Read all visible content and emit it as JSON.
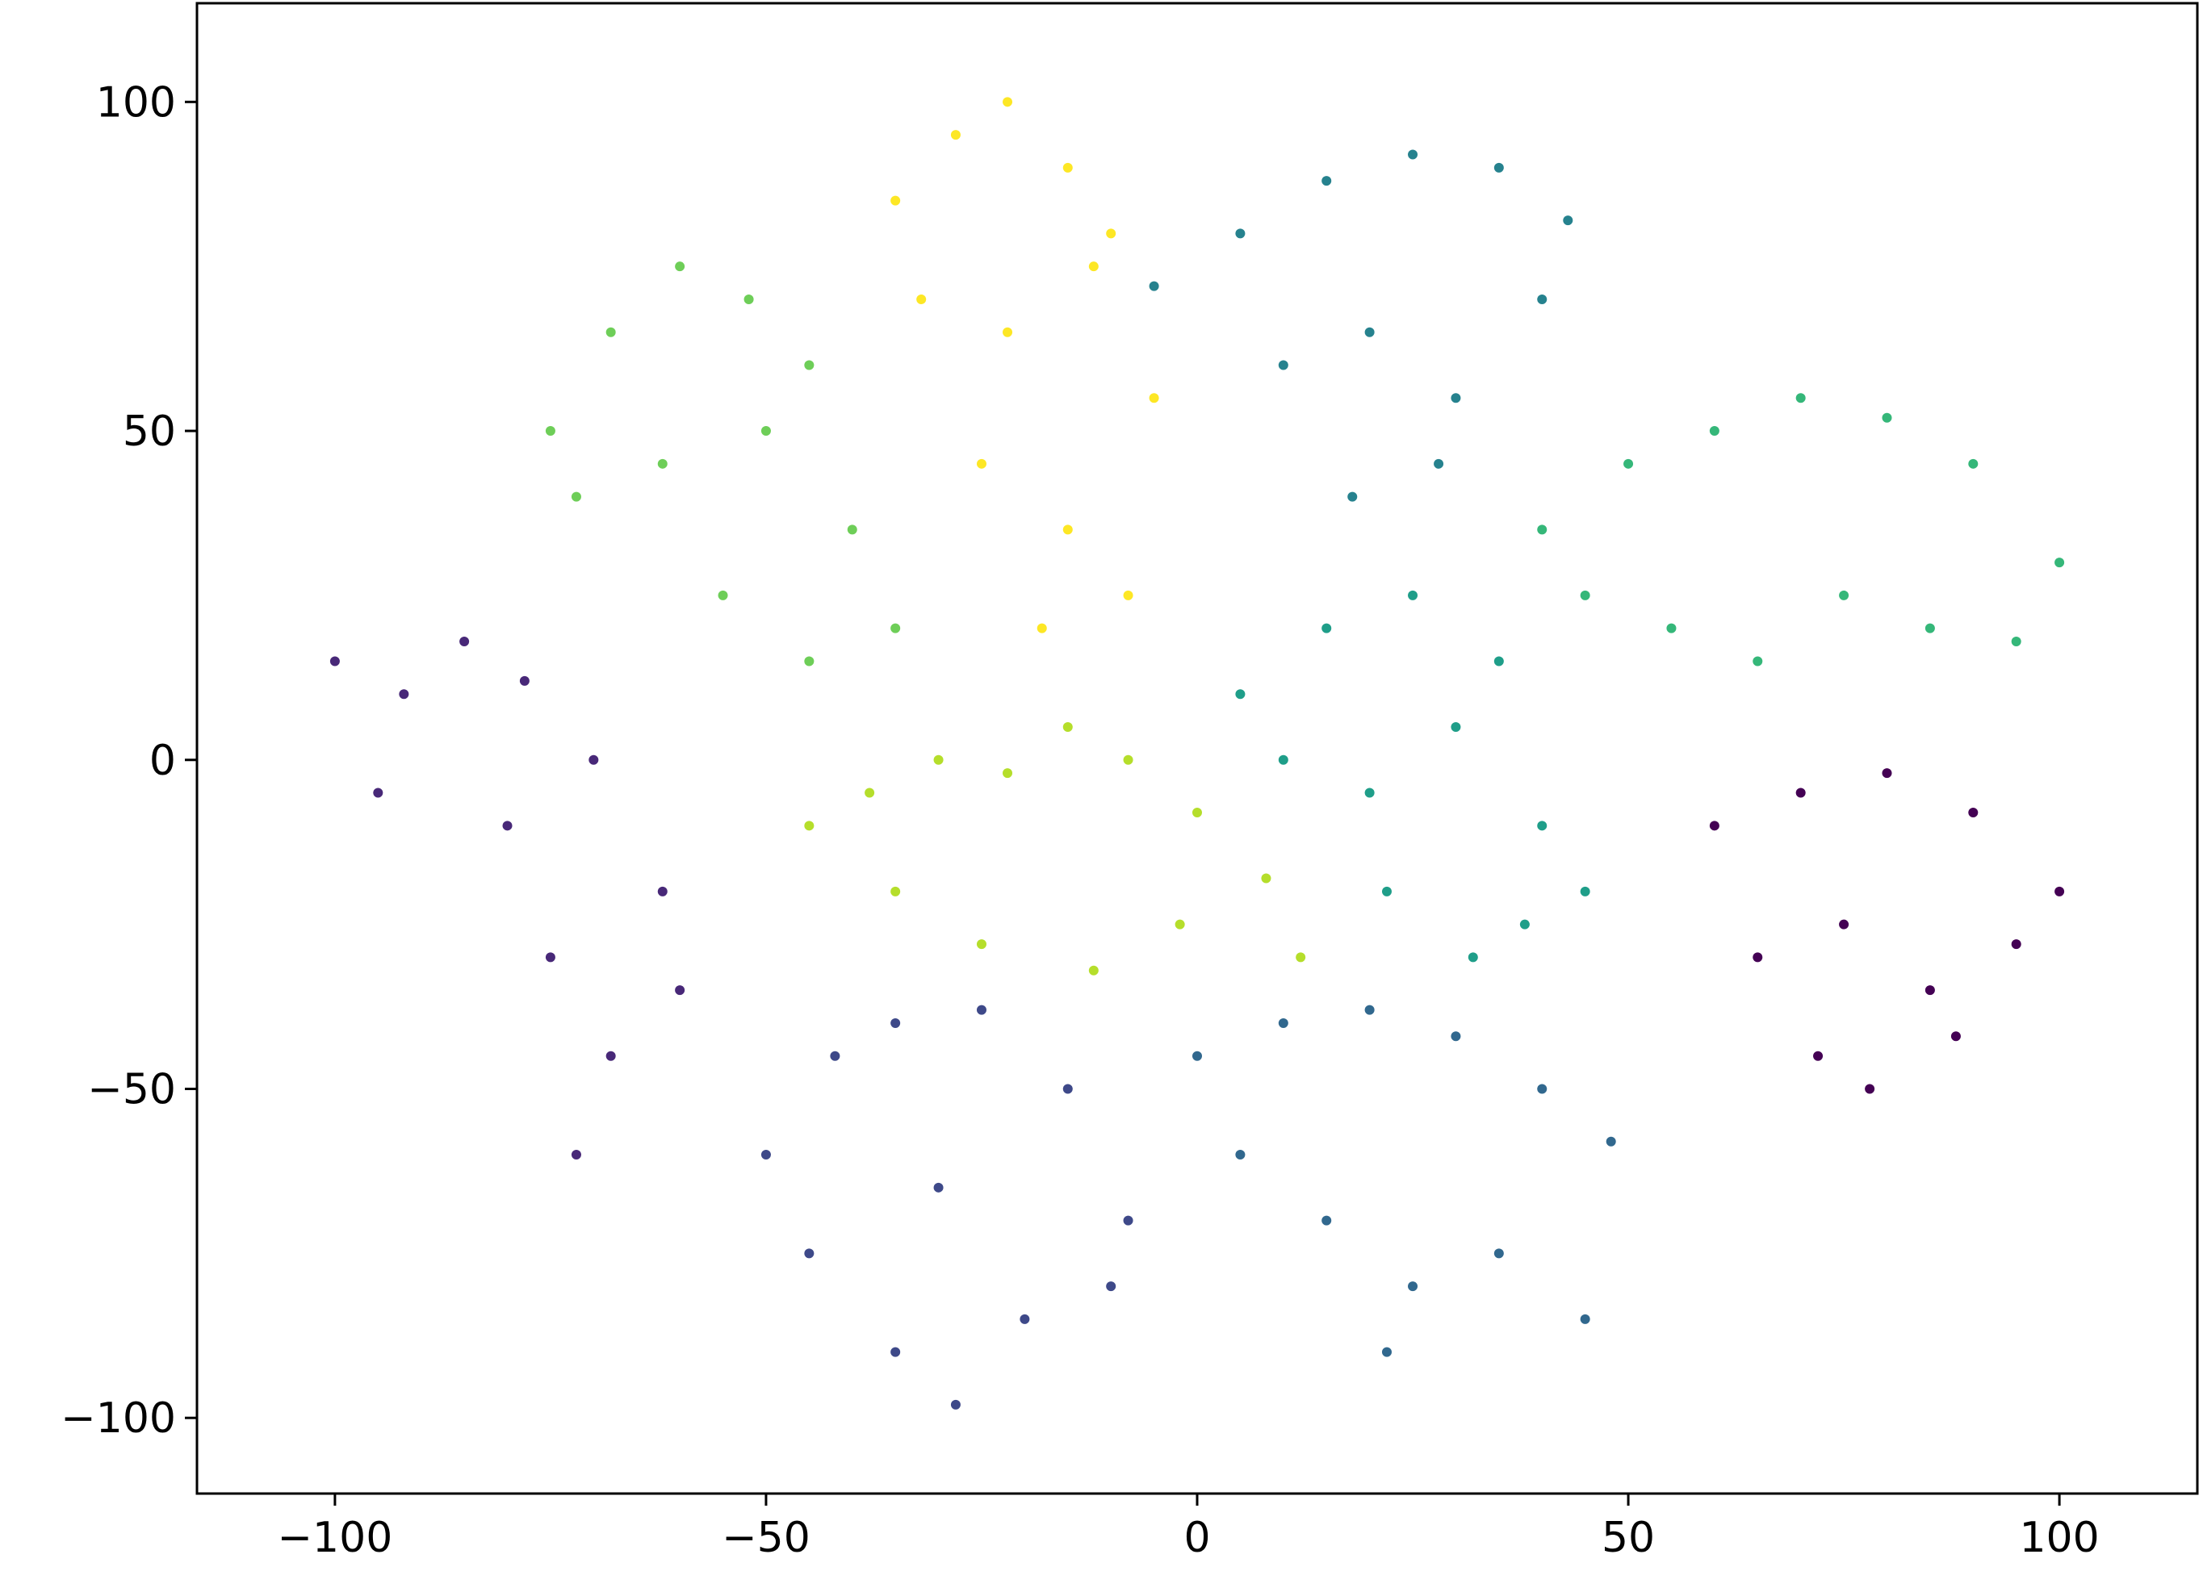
{
  "chart_data": {
    "type": "scatter",
    "xlim": [
      -116,
      116
    ],
    "ylim": [
      -111.5,
      115
    ],
    "xticks": [
      {
        "value": -100,
        "label": "−100"
      },
      {
        "value": -50,
        "label": "−50"
      },
      0,
      50,
      100
    ],
    "yticks": [
      {
        "value": -100,
        "label": "−100"
      },
      {
        "value": -50,
        "label": "−50"
      },
      0,
      50,
      100
    ],
    "grid": false,
    "series": [
      {
        "color": "#440154",
        "x": [
          60,
          70,
          80,
          90,
          100,
          65,
          75,
          85,
          95,
          78,
          72,
          88
        ],
        "y": [
          -10,
          -5,
          -2,
          -8,
          -20,
          -30,
          -25,
          -35,
          -28,
          -50,
          -45,
          -42
        ]
      },
      {
        "color": "#482878",
        "x": [
          -100,
          -92,
          -85,
          -78,
          -95,
          -80,
          -70,
          -62,
          -75,
          -68,
          -72,
          -60
        ],
        "y": [
          15,
          10,
          18,
          12,
          -5,
          -10,
          0,
          -20,
          -30,
          -45,
          -60,
          -35
        ]
      },
      {
        "color": "#3e4989",
        "x": [
          -50,
          -42,
          -35,
          -25,
          -15,
          -8,
          -45,
          -30,
          -20,
          -10,
          -28,
          -35
        ],
        "y": [
          -60,
          -45,
          -40,
          -38,
          -50,
          -70,
          -75,
          -65,
          -85,
          -80,
          -98,
          -90
        ]
      },
      {
        "color": "#31688e",
        "x": [
          0,
          10,
          20,
          30,
          40,
          48,
          5,
          15,
          25,
          35,
          45,
          22
        ],
        "y": [
          -45,
          -40,
          -38,
          -42,
          -50,
          -58,
          -60,
          -70,
          -80,
          -75,
          -85,
          -90
        ]
      },
      {
        "color": "#26828e",
        "x": [
          -5,
          5,
          15,
          25,
          35,
          43,
          10,
          20,
          30,
          40,
          18,
          28
        ],
        "y": [
          72,
          80,
          88,
          92,
          90,
          82,
          60,
          65,
          55,
          70,
          40,
          45
        ]
      },
      {
        "color": "#1f9e89",
        "x": [
          5,
          15,
          25,
          35,
          10,
          20,
          30,
          40,
          45,
          22,
          32,
          38
        ],
        "y": [
          10,
          20,
          25,
          15,
          0,
          -5,
          5,
          -10,
          -20,
          -20,
          -30,
          -25
        ]
      },
      {
        "color": "#35b779",
        "x": [
          40,
          50,
          60,
          70,
          80,
          90,
          100,
          45,
          55,
          65,
          75,
          85,
          95
        ],
        "y": [
          35,
          45,
          50,
          55,
          52,
          45,
          30,
          25,
          20,
          15,
          25,
          20,
          18
        ]
      },
      {
        "color": "#6ece58",
        "x": [
          -75,
          -68,
          -60,
          -52,
          -45,
          -72,
          -62,
          -50,
          -40,
          -55,
          -45,
          -35
        ],
        "y": [
          50,
          65,
          75,
          70,
          60,
          40,
          45,
          50,
          35,
          25,
          15,
          20
        ]
      },
      {
        "color": "#b5de2b",
        "x": [
          -45,
          -38,
          -30,
          -22,
          -15,
          -8,
          0,
          8,
          -35,
          -25,
          -12,
          -2,
          12
        ],
        "y": [
          -10,
          -5,
          0,
          -2,
          5,
          0,
          -8,
          -18,
          -20,
          -28,
          -32,
          -25,
          -30
        ]
      },
      {
        "color": "#fde725",
        "x": [
          -35,
          -28,
          -22,
          -15,
          -10,
          -32,
          -22,
          -12,
          -5,
          -25,
          -15,
          -8,
          -18
        ],
        "y": [
          85,
          95,
          100,
          90,
          80,
          70,
          65,
          75,
          55,
          45,
          35,
          25,
          20
        ]
      }
    ]
  }
}
